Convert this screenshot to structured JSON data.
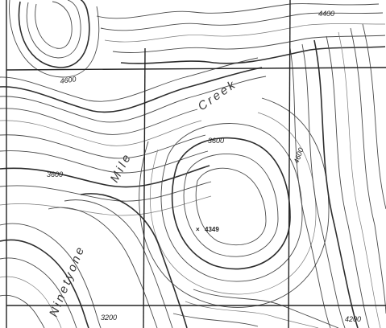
{
  "map": {
    "feature_name_parts": [
      "Ninetyone",
      "Mile",
      "Creek"
    ],
    "contour_labels": [
      "4400",
      "4600",
      "3600",
      "3600",
      "4600",
      "3200",
      "4200"
    ],
    "summit": {
      "elevation": "4349"
    },
    "colors": {
      "contour": "#4a4a4a",
      "index_contour": "#2e2e2e",
      "grid": "#222222",
      "background": "#ffffff"
    }
  }
}
